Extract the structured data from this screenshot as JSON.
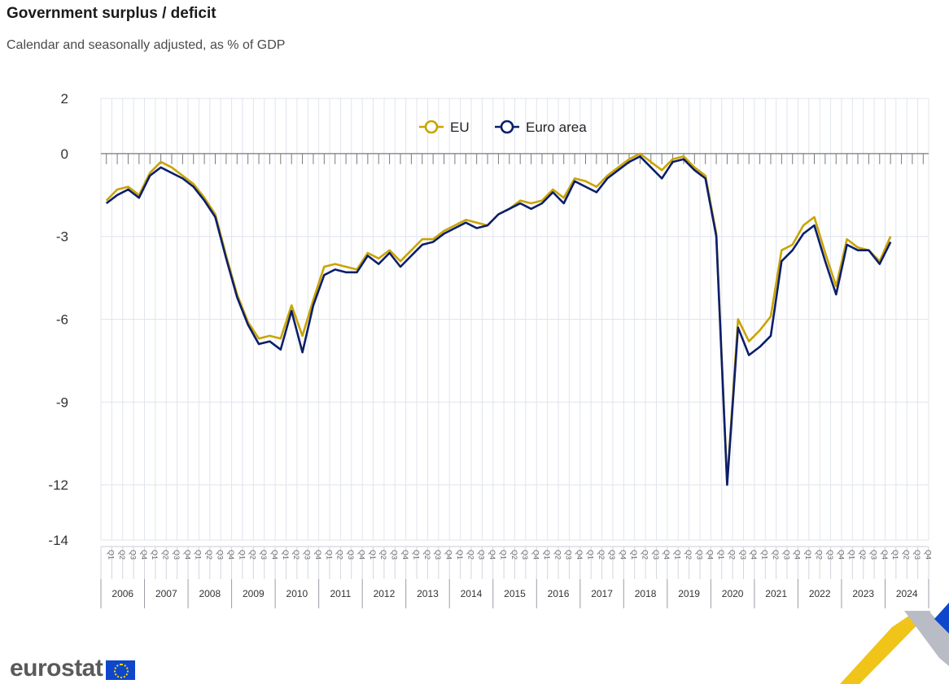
{
  "title": "Government surplus / deficit",
  "subtitle": "Calendar and seasonally adjusted, as % of GDP",
  "brand": {
    "name": "eurostat"
  },
  "colors": {
    "eu": "#c9a400",
    "euro_area": "#0b1e6b",
    "grid": "#e1e4ee",
    "axis": "#7a7a7a"
  },
  "chart_data": {
    "type": "line",
    "y_ticks": [
      2,
      0,
      -3,
      -6,
      -9,
      -12,
      -14
    ],
    "ylim": [
      -14,
      2
    ],
    "years": [
      "2006",
      "2007",
      "2008",
      "2009",
      "2010",
      "2011",
      "2012",
      "2013",
      "2014",
      "2015",
      "2016",
      "2017",
      "2018",
      "2019",
      "2020",
      "2021",
      "2022",
      "2023",
      "2024"
    ],
    "quarters": [
      "Q1",
      "Q2",
      "Q3",
      "Q4"
    ],
    "legend": [
      {
        "name": "EU"
      },
      {
        "name": "Euro area"
      }
    ],
    "series": [
      {
        "name": "EU",
        "values": [
          -1.7,
          -1.3,
          -1.2,
          -1.5,
          -0.7,
          -0.3,
          -0.5,
          -0.8,
          -1.1,
          -1.6,
          -2.2,
          -3.7,
          -5.1,
          -6.1,
          -6.7,
          -6.6,
          -6.7,
          -5.5,
          -6.6,
          -5.3,
          -4.1,
          -4.0,
          -4.1,
          -4.2,
          -3.6,
          -3.8,
          -3.5,
          -3.9,
          -3.5,
          -3.1,
          -3.1,
          -2.8,
          -2.6,
          -2.4,
          -2.5,
          -2.6,
          -2.2,
          -2.0,
          -1.7,
          -1.8,
          -1.7,
          -1.3,
          -1.6,
          -0.9,
          -1.0,
          -1.2,
          -0.8,
          -0.5,
          -0.2,
          0.0,
          -0.3,
          -0.6,
          -0.2,
          -0.1,
          -0.5,
          -0.8,
          -2.9,
          -11.9,
          -6.0,
          -6.8,
          -6.4,
          -5.9,
          -3.5,
          -3.3,
          -2.6,
          -2.3,
          -3.6,
          -4.8,
          -3.1,
          -3.4,
          -3.5,
          -3.9,
          -3.0
        ]
      },
      {
        "name": "Euro area",
        "values": [
          -1.8,
          -1.5,
          -1.3,
          -1.6,
          -0.8,
          -0.5,
          -0.7,
          -0.9,
          -1.2,
          -1.7,
          -2.3,
          -3.8,
          -5.2,
          -6.2,
          -6.9,
          -6.8,
          -7.1,
          -5.7,
          -7.2,
          -5.5,
          -4.4,
          -4.2,
          -4.3,
          -4.3,
          -3.7,
          -4.0,
          -3.6,
          -4.1,
          -3.7,
          -3.3,
          -3.2,
          -2.9,
          -2.7,
          -2.5,
          -2.7,
          -2.6,
          -2.2,
          -2.0,
          -1.8,
          -2.0,
          -1.8,
          -1.4,
          -1.8,
          -1.0,
          -1.2,
          -1.4,
          -0.9,
          -0.6,
          -0.3,
          -0.1,
          -0.5,
          -0.9,
          -0.3,
          -0.2,
          -0.6,
          -0.9,
          -3.0,
          -12.0,
          -6.3,
          -7.3,
          -7.0,
          -6.6,
          -3.9,
          -3.5,
          -2.9,
          -2.6,
          -3.9,
          -5.1,
          -3.3,
          -3.5,
          -3.5,
          -4.0,
          -3.2
        ]
      }
    ]
  }
}
